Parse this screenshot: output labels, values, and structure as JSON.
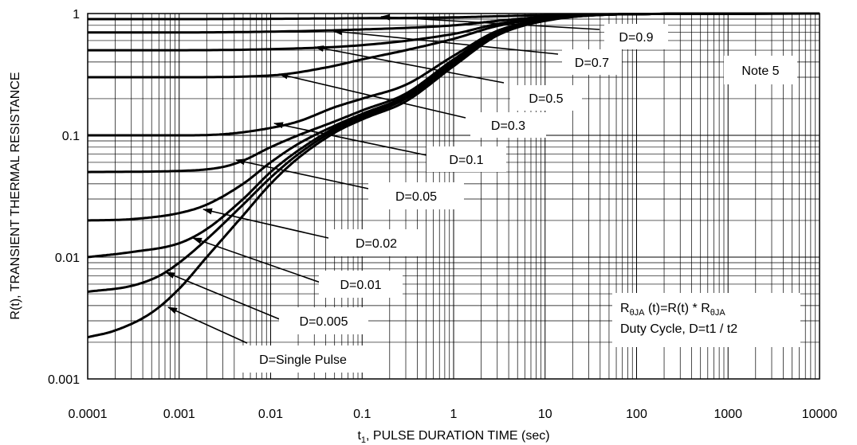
{
  "chart_data": {
    "type": "line",
    "xlabel_prefix": "t",
    "xlabel_sub": "1",
    "xlabel_rest": ", PULSE DURATION TIME (sec)",
    "ylabel": "R(t), TRANSIENT THERMAL RESISTANCE",
    "x_scale": "log",
    "y_scale": "log",
    "xlim": [
      0.0001,
      10000
    ],
    "ylim": [
      0.001,
      1
    ],
    "grid": true,
    "x_ticks": [
      "0.0001",
      "0.001",
      "0.01",
      "0.1",
      "1",
      "10",
      "100",
      "1000",
      "10000"
    ],
    "y_ticks": [
      "0.001",
      "0.01",
      "0.1",
      "1"
    ],
    "note": "Note 5",
    "formula": {
      "prefix": "R",
      "sub1": "θJA",
      "middle": " (t)=R(t) * R",
      "sub2": "θJA",
      "line2": "Duty Cycle, D=t1 / t2"
    },
    "series": [
      {
        "name": "D=0.9",
        "points": [
          [
            0.0001,
            0.9
          ],
          [
            0.001,
            0.9
          ],
          [
            0.01,
            0.905
          ],
          [
            0.1,
            0.915
          ],
          [
            1,
            0.93
          ],
          [
            3,
            0.95
          ],
          [
            10,
            0.97
          ],
          [
            100,
            0.99
          ],
          [
            10000,
            1.0
          ]
        ]
      },
      {
        "name": "D=0.7",
        "points": [
          [
            0.0001,
            0.7
          ],
          [
            0.001,
            0.7
          ],
          [
            0.01,
            0.71
          ],
          [
            0.1,
            0.74
          ],
          [
            1,
            0.8
          ],
          [
            3,
            0.87
          ],
          [
            10,
            0.94
          ],
          [
            100,
            0.99
          ],
          [
            10000,
            1.0
          ]
        ]
      },
      {
        "name": "D=0.5",
        "points": [
          [
            0.0001,
            0.5
          ],
          [
            0.001,
            0.5
          ],
          [
            0.01,
            0.51
          ],
          [
            0.1,
            0.55
          ],
          [
            1,
            0.68
          ],
          [
            3,
            0.82
          ],
          [
            10,
            0.92
          ],
          [
            100,
            0.99
          ],
          [
            10000,
            1.0
          ]
        ]
      },
      {
        "name": "D=0.3",
        "points": [
          [
            0.0001,
            0.3
          ],
          [
            0.001,
            0.3
          ],
          [
            0.01,
            0.31
          ],
          [
            0.04,
            0.36
          ],
          [
            0.1,
            0.42
          ],
          [
            0.3,
            0.5
          ],
          [
            1,
            0.62
          ],
          [
            3,
            0.79
          ],
          [
            10,
            0.91
          ],
          [
            100,
            0.99
          ],
          [
            10000,
            1.0
          ]
        ]
      },
      {
        "name": "D=0.1",
        "points": [
          [
            0.0001,
            0.1
          ],
          [
            0.001,
            0.1
          ],
          [
            0.003,
            0.102
          ],
          [
            0.01,
            0.115
          ],
          [
            0.02,
            0.13
          ],
          [
            0.05,
            0.17
          ],
          [
            0.1,
            0.2
          ],
          [
            0.3,
            0.26
          ],
          [
            1,
            0.45
          ],
          [
            3,
            0.72
          ],
          [
            10,
            0.89
          ],
          [
            100,
            0.99
          ],
          [
            10000,
            1.0
          ]
        ]
      },
      {
        "name": "D=0.05",
        "points": [
          [
            0.0001,
            0.05
          ],
          [
            0.001,
            0.051
          ],
          [
            0.003,
            0.055
          ],
          [
            0.005,
            0.062
          ],
          [
            0.01,
            0.08
          ],
          [
            0.02,
            0.1
          ],
          [
            0.05,
            0.13
          ],
          [
            0.1,
            0.16
          ],
          [
            0.3,
            0.22
          ],
          [
            1,
            0.42
          ],
          [
            3,
            0.7
          ],
          [
            10,
            0.88
          ],
          [
            100,
            0.99
          ],
          [
            10000,
            1.0
          ]
        ]
      },
      {
        "name": "D=0.02",
        "points": [
          [
            0.0001,
            0.02
          ],
          [
            0.0003,
            0.0205
          ],
          [
            0.001,
            0.023
          ],
          [
            0.002,
            0.027
          ],
          [
            0.005,
            0.04
          ],
          [
            0.01,
            0.06
          ],
          [
            0.02,
            0.085
          ],
          [
            0.05,
            0.12
          ],
          [
            0.1,
            0.15
          ],
          [
            0.3,
            0.21
          ],
          [
            1,
            0.4
          ],
          [
            3,
            0.69
          ],
          [
            10,
            0.88
          ],
          [
            100,
            0.99
          ],
          [
            10000,
            1.0
          ]
        ]
      },
      {
        "name": "D=0.01",
        "points": [
          [
            0.0001,
            0.01
          ],
          [
            0.0003,
            0.011
          ],
          [
            0.001,
            0.013
          ],
          [
            0.002,
            0.017
          ],
          [
            0.005,
            0.03
          ],
          [
            0.01,
            0.05
          ],
          [
            0.02,
            0.075
          ],
          [
            0.05,
            0.115
          ],
          [
            0.1,
            0.145
          ],
          [
            0.3,
            0.205
          ],
          [
            1,
            0.39
          ],
          [
            3,
            0.68
          ],
          [
            10,
            0.88
          ],
          [
            100,
            0.99
          ],
          [
            10000,
            1.0
          ]
        ]
      },
      {
        "name": "D=0.005",
        "points": [
          [
            0.0001,
            0.0052
          ],
          [
            0.0003,
            0.0058
          ],
          [
            0.0006,
            0.007
          ],
          [
            0.001,
            0.009
          ],
          [
            0.002,
            0.014
          ],
          [
            0.005,
            0.027
          ],
          [
            0.01,
            0.045
          ],
          [
            0.02,
            0.07
          ],
          [
            0.05,
            0.11
          ],
          [
            0.1,
            0.14
          ],
          [
            0.3,
            0.2
          ],
          [
            1,
            0.38
          ],
          [
            3,
            0.67
          ],
          [
            10,
            0.88
          ],
          [
            100,
            0.99
          ],
          [
            10000,
            1.0
          ]
        ]
      },
      {
        "name": "D=Single Pulse",
        "points": [
          [
            0.0001,
            0.0022
          ],
          [
            0.0002,
            0.0025
          ],
          [
            0.0005,
            0.0035
          ],
          [
            0.001,
            0.0055
          ],
          [
            0.002,
            0.01
          ],
          [
            0.005,
            0.022
          ],
          [
            0.01,
            0.04
          ],
          [
            0.02,
            0.065
          ],
          [
            0.05,
            0.105
          ],
          [
            0.1,
            0.135
          ],
          [
            0.3,
            0.19
          ],
          [
            1,
            0.37
          ],
          [
            3,
            0.66
          ],
          [
            10,
            0.87
          ],
          [
            100,
            0.99
          ],
          [
            10000,
            1.0
          ]
        ]
      }
    ]
  }
}
